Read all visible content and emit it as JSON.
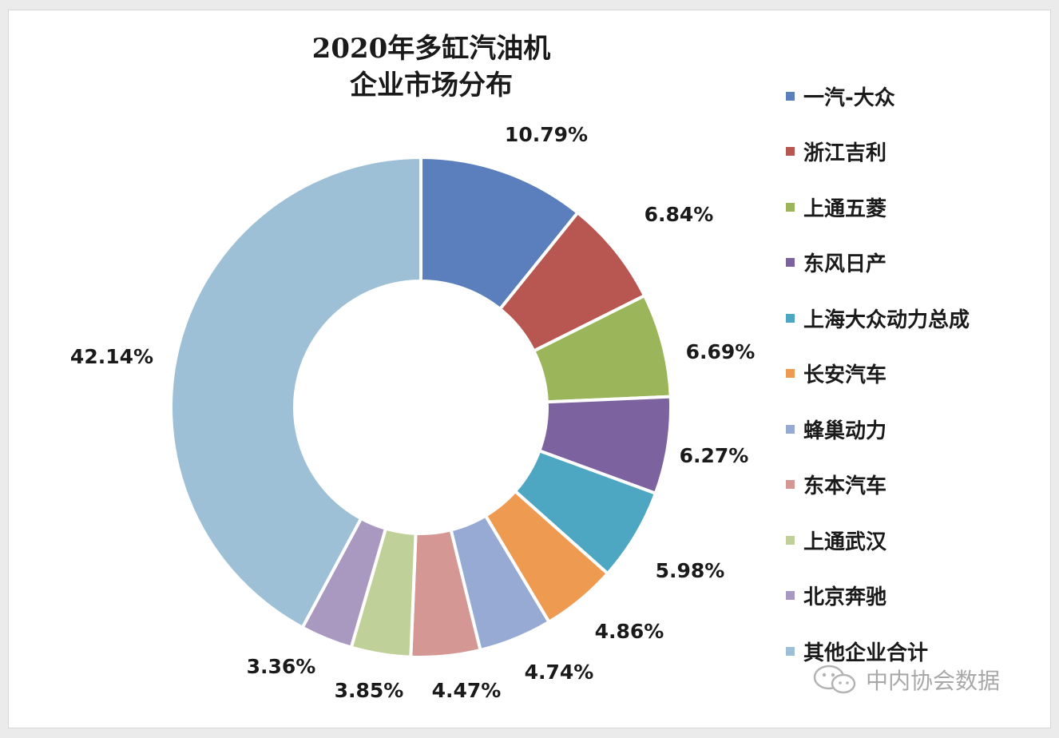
{
  "chart_data": {
    "type": "pie",
    "title_lines": [
      "2020年多缸汽油机",
      "企业市场分布"
    ],
    "categories": [
      "一汽-大众",
      "浙江吉利",
      "上通五菱",
      "东风日产",
      "上海大众动力总成",
      "长安汽车",
      "蜂巢动力",
      "东本汽车",
      "上通武汉",
      "北京奔驰",
      "其他企业合计"
    ],
    "values": [
      10.79,
      6.84,
      6.69,
      6.27,
      5.98,
      4.86,
      4.74,
      4.47,
      3.85,
      3.36,
      42.14
    ],
    "data_labels": [
      "10.79%",
      "6.84%",
      "6.69%",
      "6.27%",
      "5.98%",
      "4.86%",
      "4.74%",
      "4.47%",
      "3.85%",
      "3.36%",
      "42.14%"
    ],
    "colors": [
      "#5b7fbc",
      "#b85651",
      "#9ab55a",
      "#7d62a0",
      "#4ea7c2",
      "#ef9a51",
      "#97aad3",
      "#d49793",
      "#bfd199",
      "#a998c0",
      "#9ec0d6"
    ],
    "start_angle_deg": 0,
    "direction": "clockwise",
    "legend_position": "right"
  },
  "watermark": {
    "text": "中内协会数据",
    "icon": "wechat-icon"
  }
}
